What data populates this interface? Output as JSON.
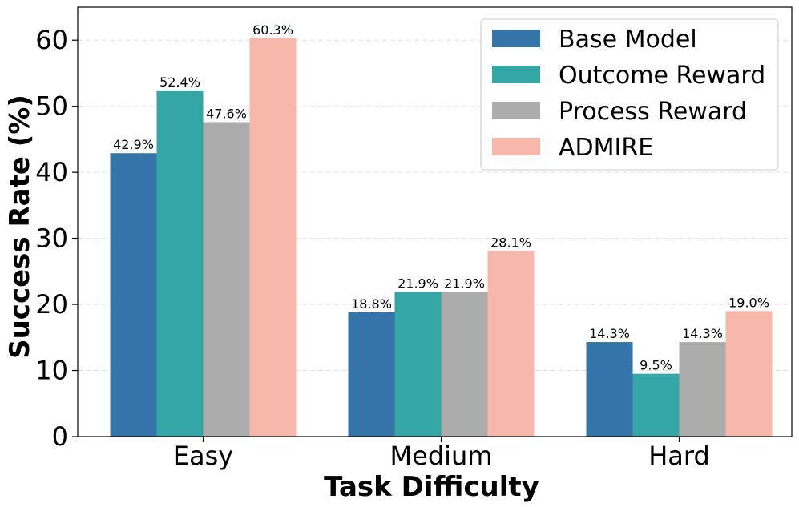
{
  "chart_data": {
    "type": "bar",
    "title": "",
    "xlabel": "Task Difficulty",
    "ylabel": "Success Rate (%)",
    "ylim": [
      0,
      65
    ],
    "yticks": [
      0,
      10,
      20,
      30,
      40,
      50,
      60
    ],
    "grid": true,
    "legend_position": "top-right",
    "categories": [
      "Easy",
      "Medium",
      "Hard"
    ],
    "series": [
      {
        "name": "Base Model",
        "color": "#3574a8",
        "values": [
          42.9,
          18.8,
          14.3
        ],
        "labels": [
          "42.9%",
          "18.8%",
          "14.3%"
        ]
      },
      {
        "name": "Outcome Reward",
        "color": "#33a6a5",
        "values": [
          52.4,
          21.9,
          9.5
        ],
        "labels": [
          "52.4%",
          "21.9%",
          "9.5%"
        ]
      },
      {
        "name": "Process Reward",
        "color": "#acacac",
        "values": [
          47.6,
          21.9,
          14.3
        ],
        "labels": [
          "47.6%",
          "21.9%",
          "14.3%"
        ]
      },
      {
        "name": "ADMIRE",
        "color": "#f6b8aa",
        "values": [
          60.3,
          28.1,
          19.0
        ],
        "labels": [
          "60.3%",
          "28.1%",
          "19.0%"
        ]
      }
    ]
  }
}
